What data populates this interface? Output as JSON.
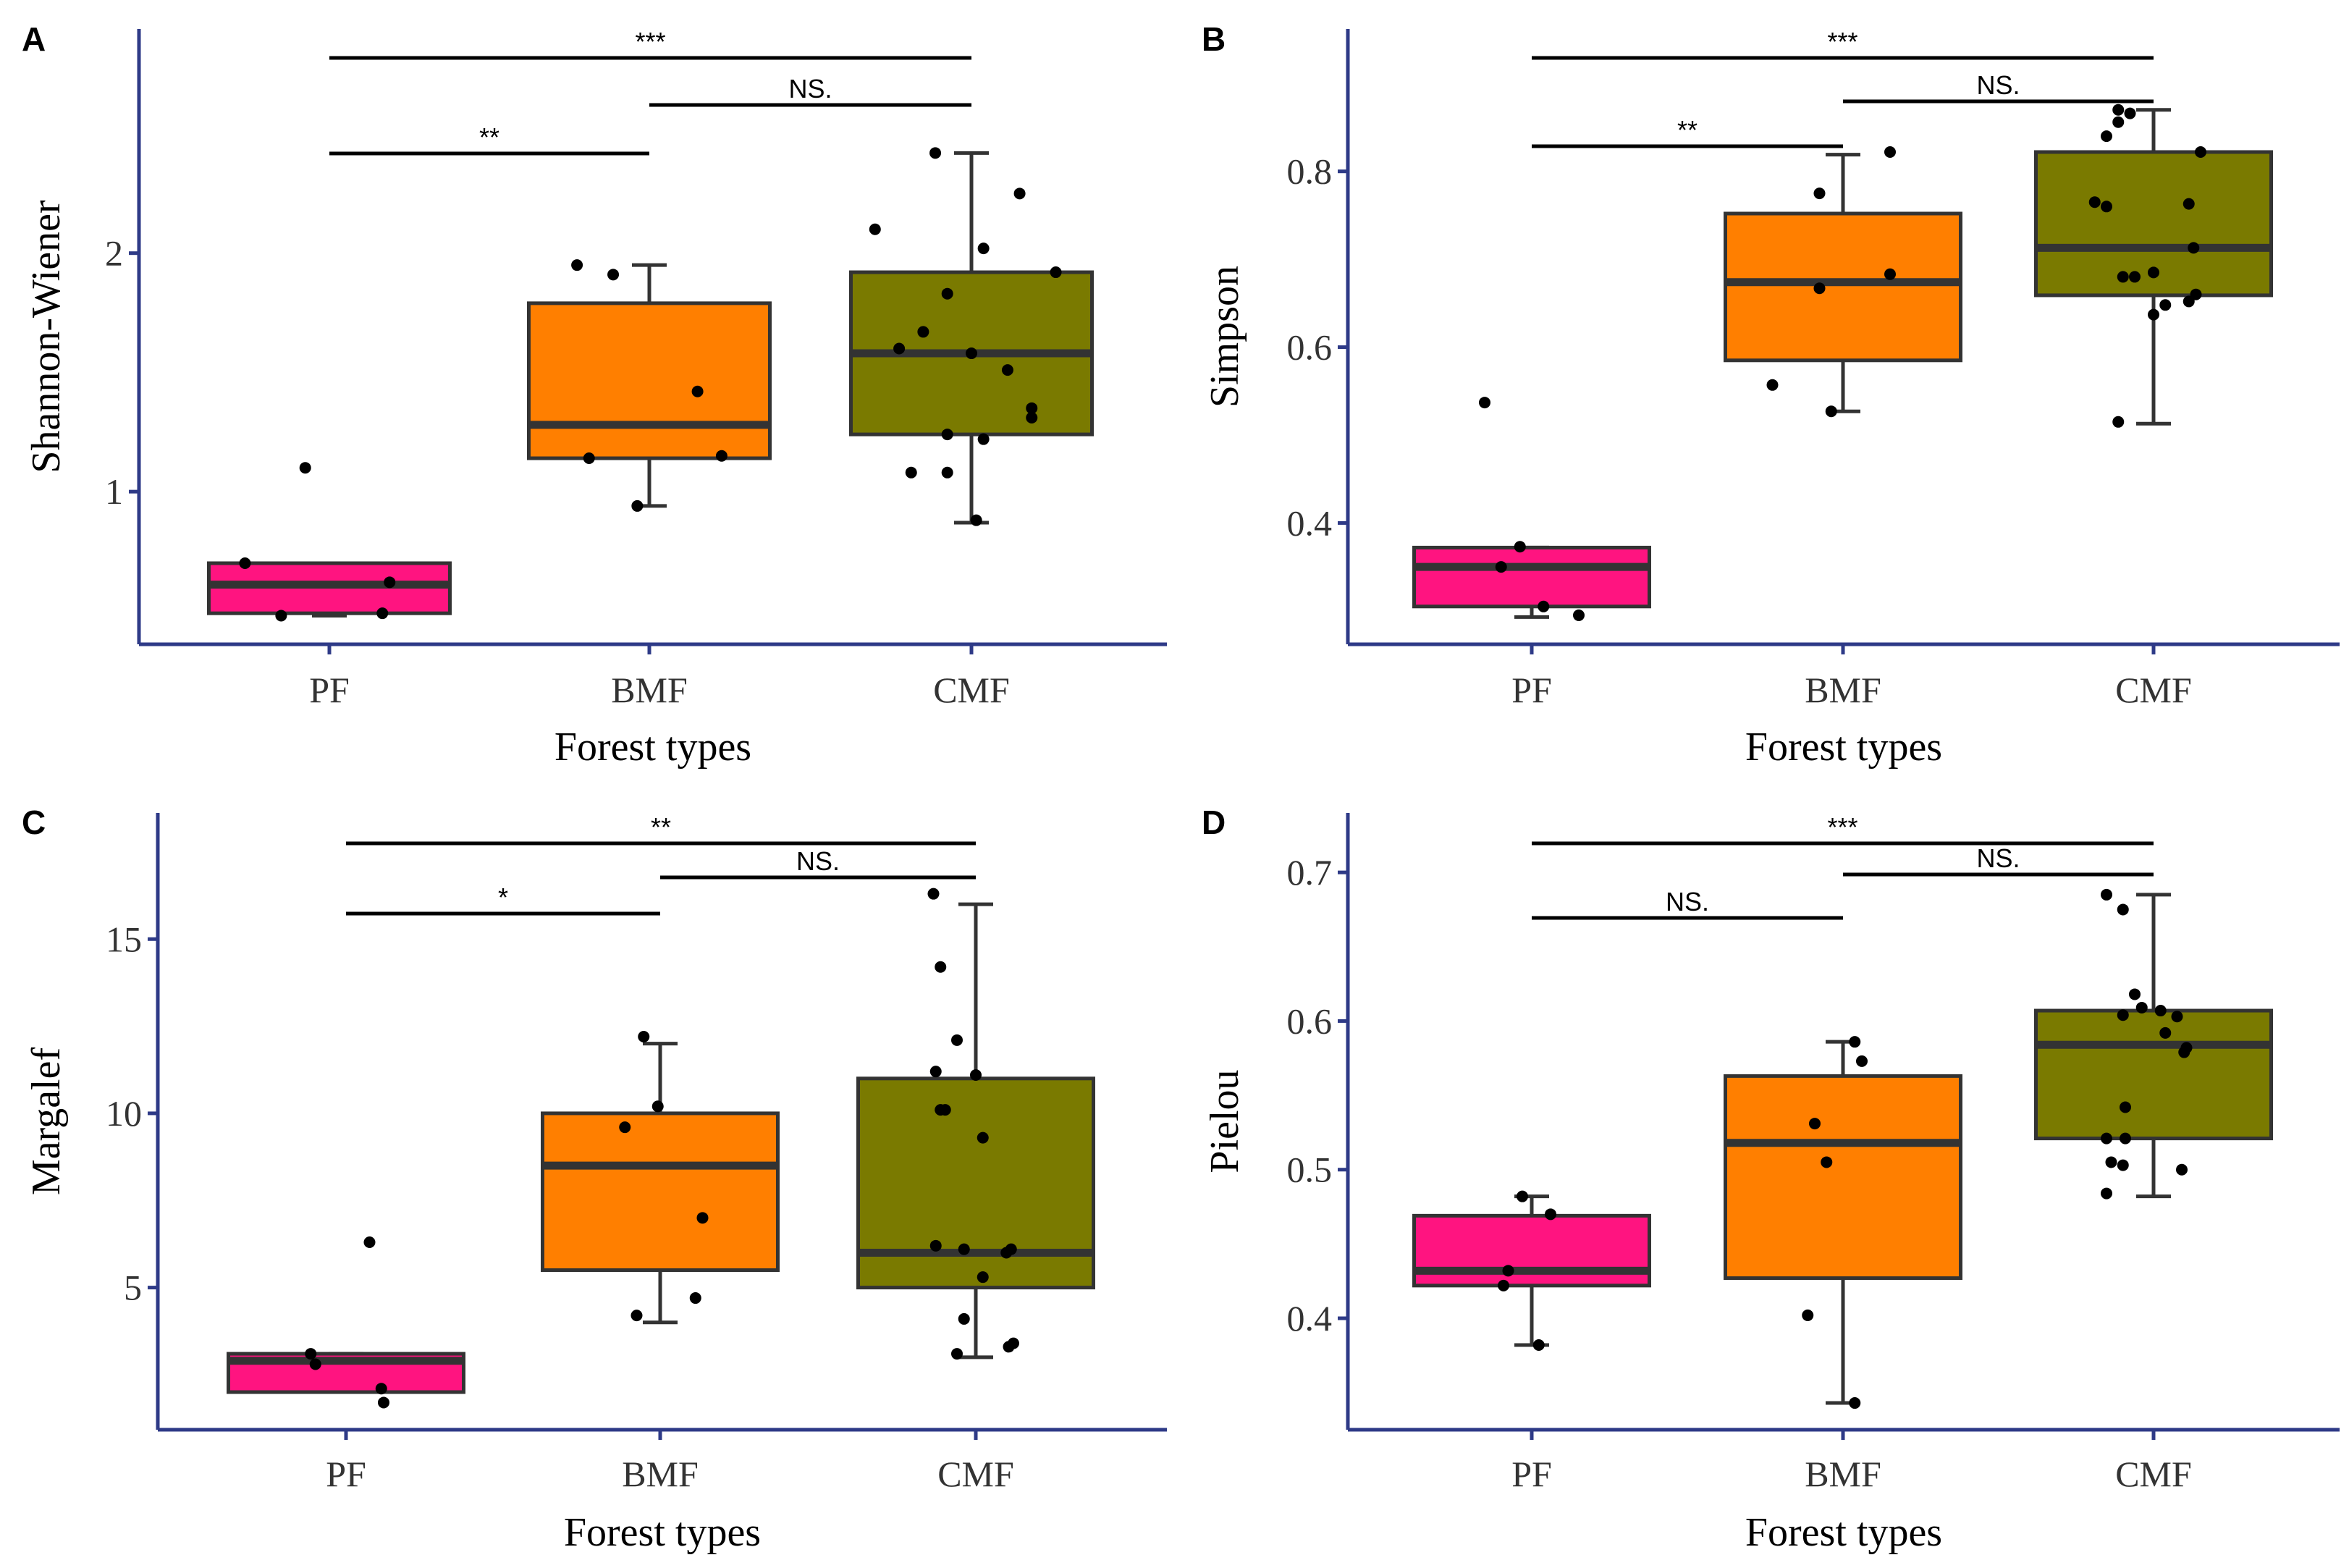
{
  "colors": {
    "PF": "#ff1480",
    "BMF": "#ff7f00",
    "CMF": "#7a7a00",
    "axis": "#2e3a87"
  },
  "chart_data": [
    {
      "type": "box",
      "panel": "A",
      "xlabel": "Forest types",
      "ylabel": "Shannon-Wiener",
      "categories": [
        "PF",
        "BMF",
        "CMF"
      ],
      "ylim": [
        0.36,
        2.94
      ],
      "yticks": [
        1,
        2
      ],
      "boxes": [
        {
          "q1": 0.49,
          "median": 0.61,
          "q3": 0.7,
          "whisker_low": 0.48,
          "whisker_high": 0.7
        },
        {
          "q1": 1.14,
          "median": 1.28,
          "q3": 1.79,
          "whisker_low": 0.94,
          "whisker_high": 1.95
        },
        {
          "q1": 1.24,
          "median": 1.58,
          "q3": 1.92,
          "whisker_low": 0.87,
          "whisker_high": 2.42
        }
      ],
      "points": [
        [
          [
            -0.35,
            0.7
          ],
          [
            0.25,
            0.62
          ],
          [
            -0.1,
            1.1
          ],
          [
            -0.2,
            0.48
          ],
          [
            0.22,
            0.49
          ]
        ],
        [
          [
            -0.3,
            1.95
          ],
          [
            -0.15,
            1.91
          ],
          [
            0.2,
            1.42
          ],
          [
            -0.25,
            1.14
          ],
          [
            0.3,
            1.15
          ],
          [
            -0.05,
            0.94
          ]
        ],
        [
          [
            -0.15,
            2.42
          ],
          [
            0.2,
            2.25
          ],
          [
            -0.4,
            2.1
          ],
          [
            0.05,
            2.02
          ],
          [
            0.35,
            1.92
          ],
          [
            -0.1,
            1.83
          ],
          [
            -0.2,
            1.67
          ],
          [
            -0.3,
            1.6
          ],
          [
            0.0,
            1.58
          ],
          [
            0.15,
            1.51
          ],
          [
            0.25,
            1.35
          ],
          [
            0.25,
            1.31
          ],
          [
            -0.1,
            1.24
          ],
          [
            0.05,
            1.22
          ],
          [
            -0.25,
            1.08
          ],
          [
            -0.1,
            1.08
          ],
          [
            0.02,
            0.88
          ]
        ]
      ],
      "brackets": [
        {
          "from": 0,
          "to": 2,
          "level": 0,
          "label": "***"
        },
        {
          "from": 1,
          "to": 2,
          "level": 1,
          "label": "NS."
        },
        {
          "from": 0,
          "to": 1,
          "level": 2,
          "label": "**"
        }
      ]
    },
    {
      "type": "box",
      "panel": "B",
      "xlabel": "Forest types",
      "ylabel": "Simpson",
      "categories": [
        "PF",
        "BMF",
        "CMF"
      ],
      "ylim": [
        0.262,
        0.962
      ],
      "yticks": [
        0.4,
        0.6,
        0.8
      ],
      "boxes": [
        {
          "q1": 0.305,
          "median": 0.35,
          "q3": 0.372,
          "whisker_low": 0.293,
          "whisker_high": 0.372
        },
        {
          "q1": 0.585,
          "median": 0.674,
          "q3": 0.752,
          "whisker_low": 0.527,
          "whisker_high": 0.819
        },
        {
          "q1": 0.659,
          "median": 0.713,
          "q3": 0.822,
          "whisker_low": 0.513,
          "whisker_high": 0.87
        }
      ],
      "points": [
        [
          [
            -0.2,
            0.537
          ],
          [
            -0.05,
            0.373
          ],
          [
            -0.13,
            0.35
          ],
          [
            0.05,
            0.305
          ],
          [
            0.2,
            0.295
          ]
        ],
        [
          [
            -0.1,
            0.775
          ],
          [
            0.2,
            0.822
          ],
          [
            0.2,
            0.683
          ],
          [
            -0.1,
            0.667
          ],
          [
            -0.3,
            0.557
          ],
          [
            -0.05,
            0.527
          ]
        ],
        [
          [
            -0.15,
            0.87
          ],
          [
            -0.1,
            0.866
          ],
          [
            -0.15,
            0.856
          ],
          [
            -0.2,
            0.84
          ],
          [
            0.2,
            0.822
          ],
          [
            0.15,
            0.763
          ],
          [
            -0.25,
            0.765
          ],
          [
            -0.2,
            0.76
          ],
          [
            0.17,
            0.713
          ],
          [
            0.0,
            0.685
          ],
          [
            -0.13,
            0.68
          ],
          [
            -0.08,
            0.68
          ],
          [
            0.18,
            0.66
          ],
          [
            0.15,
            0.652
          ],
          [
            0.05,
            0.648
          ],
          [
            0.0,
            0.637
          ],
          [
            -0.15,
            0.515
          ]
        ]
      ],
      "brackets": [
        {
          "from": 0,
          "to": 2,
          "level": 0,
          "label": "***"
        },
        {
          "from": 1,
          "to": 2,
          "level": 1,
          "label": "NS."
        },
        {
          "from": 0,
          "to": 1,
          "level": 2,
          "label": "**"
        }
      ]
    },
    {
      "type": "box",
      "panel": "C",
      "xlabel": "Forest types",
      "ylabel": "Margalef",
      "categories": [
        "PF",
        "BMF",
        "CMF"
      ],
      "ylim": [
        0.92,
        18.62
      ],
      "yticks": [
        5,
        10,
        15
      ],
      "boxes": [
        {
          "q1": 2.0,
          "median": 2.9,
          "q3": 3.1,
          "whisker_low": 2.0,
          "whisker_high": 3.1
        },
        {
          "q1": 5.5,
          "median": 8.5,
          "q3": 10.0,
          "whisker_low": 4.0,
          "whisker_high": 12.0
        },
        {
          "q1": 5.0,
          "median": 6.0,
          "q3": 11.0,
          "whisker_low": 3.0,
          "whisker_high": 16.0
        }
      ],
      "points": [
        [
          [
            0.1,
            6.3
          ],
          [
            -0.15,
            3.1
          ],
          [
            -0.13,
            2.8
          ],
          [
            0.15,
            2.1
          ],
          [
            0.16,
            1.7
          ]
        ],
        [
          [
            -0.07,
            12.2
          ],
          [
            -0.01,
            10.2
          ],
          [
            -0.15,
            9.6
          ],
          [
            0.18,
            7.0
          ],
          [
            0.15,
            4.7
          ],
          [
            -0.1,
            4.2
          ]
        ],
        [
          [
            -0.18,
            16.3
          ],
          [
            -0.15,
            14.2
          ],
          [
            -0.08,
            12.1
          ],
          [
            -0.17,
            11.2
          ],
          [
            0.0,
            11.1
          ],
          [
            -0.15,
            10.1
          ],
          [
            -0.13,
            10.1
          ],
          [
            0.03,
            9.3
          ],
          [
            -0.17,
            6.2
          ],
          [
            -0.05,
            6.1
          ],
          [
            0.15,
            6.1
          ],
          [
            0.13,
            6.0
          ],
          [
            0.03,
            5.3
          ],
          [
            -0.05,
            4.1
          ],
          [
            0.16,
            3.4
          ],
          [
            0.14,
            3.3
          ],
          [
            -0.08,
            3.1
          ]
        ]
      ],
      "brackets": [
        {
          "from": 0,
          "to": 2,
          "level": 0,
          "label": "**"
        },
        {
          "from": 1,
          "to": 2,
          "level": 1,
          "label": "NS."
        },
        {
          "from": 0,
          "to": 1,
          "level": 2,
          "label": "*"
        }
      ]
    },
    {
      "type": "box",
      "panel": "D",
      "xlabel": "Forest types",
      "ylabel": "Pielou",
      "categories": [
        "PF",
        "BMF",
        "CMF"
      ],
      "ylim": [
        0.325,
        0.74
      ],
      "yticks": [
        0.4,
        0.5,
        0.6,
        0.7
      ],
      "boxes": [
        {
          "q1": 0.422,
          "median": 0.432,
          "q3": 0.469,
          "whisker_low": 0.382,
          "whisker_high": 0.482
        },
        {
          "q1": 0.427,
          "median": 0.518,
          "q3": 0.563,
          "whisker_low": 0.343,
          "whisker_high": 0.586
        },
        {
          "q1": 0.521,
          "median": 0.584,
          "q3": 0.607,
          "whisker_low": 0.482,
          "whisker_high": 0.685
        }
      ],
      "points": [
        [
          [
            -0.04,
            0.482
          ],
          [
            0.08,
            0.47
          ],
          [
            -0.1,
            0.432
          ],
          [
            -0.12,
            0.422
          ],
          [
            0.03,
            0.382
          ]
        ],
        [
          [
            0.05,
            0.586
          ],
          [
            0.08,
            0.573
          ],
          [
            -0.12,
            0.531
          ],
          [
            -0.07,
            0.505
          ],
          [
            -0.15,
            0.402
          ],
          [
            0.05,
            0.343
          ]
        ],
        [
          [
            -0.2,
            0.685
          ],
          [
            -0.13,
            0.675
          ],
          [
            -0.08,
            0.618
          ],
          [
            -0.05,
            0.609
          ],
          [
            -0.13,
            0.604
          ],
          [
            0.03,
            0.607
          ],
          [
            0.1,
            0.603
          ],
          [
            0.05,
            0.592
          ],
          [
            0.14,
            0.582
          ],
          [
            0.13,
            0.579
          ],
          [
            -0.12,
            0.542
          ],
          [
            -0.2,
            0.521
          ],
          [
            -0.12,
            0.521
          ],
          [
            -0.18,
            0.505
          ],
          [
            -0.13,
            0.503
          ],
          [
            0.12,
            0.5
          ],
          [
            -0.2,
            0.484
          ]
        ]
      ],
      "brackets": [
        {
          "from": 0,
          "to": 2,
          "level": 0,
          "label": "***"
        },
        {
          "from": 1,
          "to": 2,
          "level": 1,
          "label": "NS."
        },
        {
          "from": 0,
          "to": 1,
          "level": 2,
          "label": "NS."
        }
      ]
    }
  ]
}
